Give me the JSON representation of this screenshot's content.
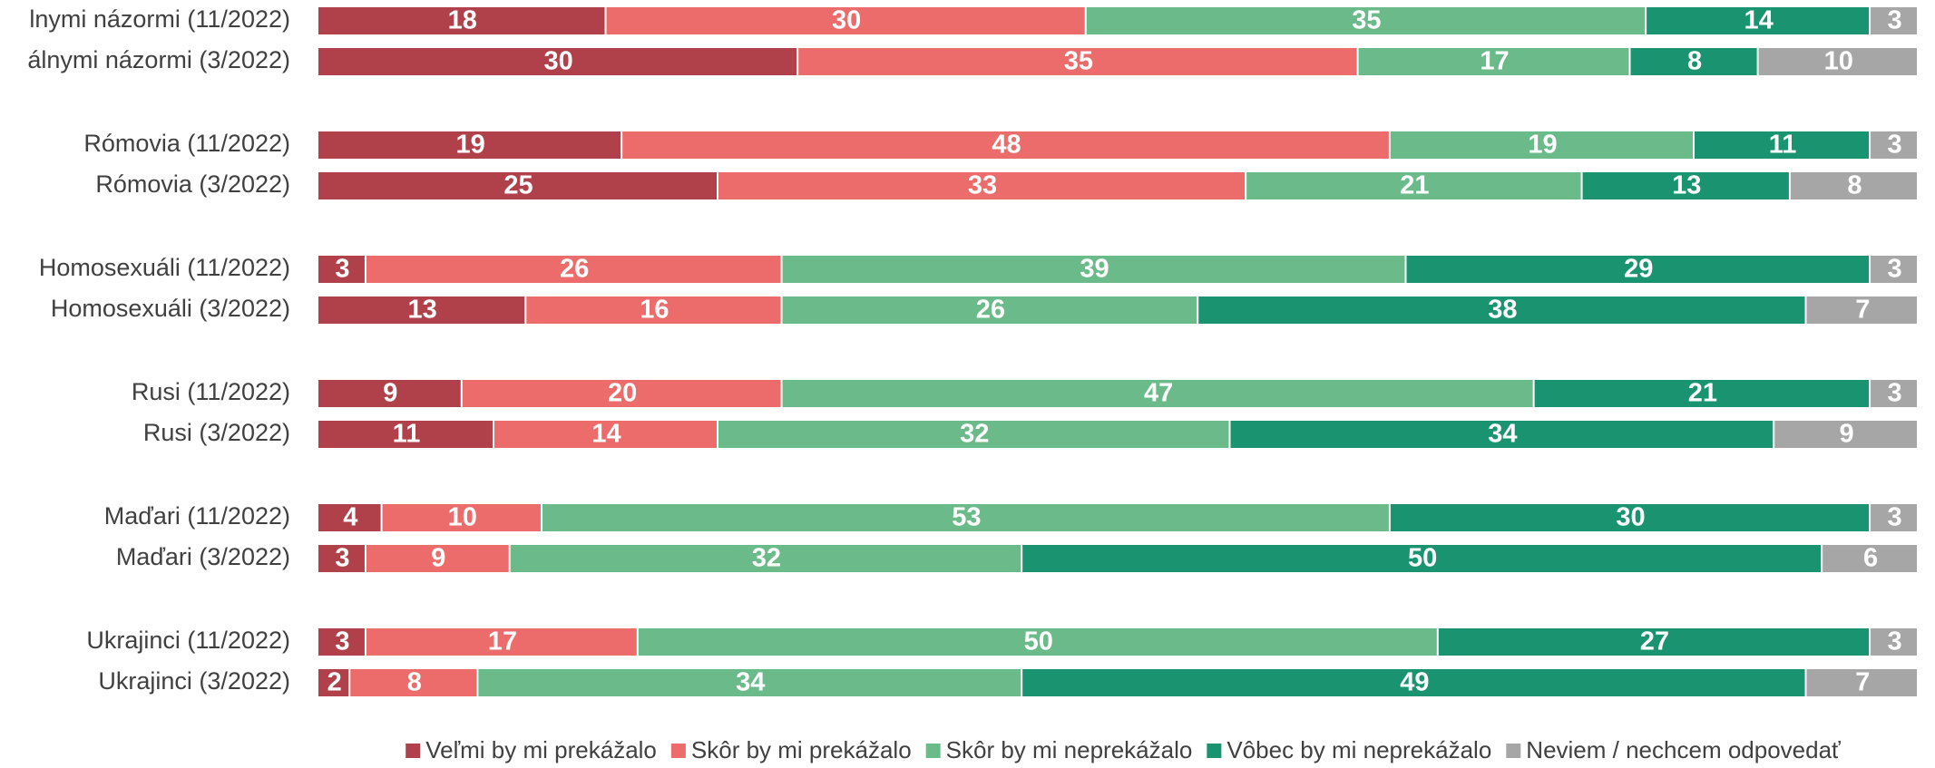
{
  "chart_data": {
    "type": "stacked-bar-horizontal",
    "categories": [
      "lnymi názormi (11/2022)",
      "álnymi názormi (3/2022)",
      "Rómovia (11/2022)",
      "Rómovia (3/2022)",
      "Homosexuáli (11/2022)",
      "Homosexuáli (3/2022)",
      "Rusi (11/2022)",
      "Rusi (3/2022)",
      "Maďari (11/2022)",
      "Maďari (3/2022)",
      "Ukrajinci (11/2022)",
      "Ukrajinci (3/2022)"
    ],
    "xlim": [
      0,
      100
    ],
    "legend": "bottom",
    "series": [
      {
        "name": "Veľmi by mi prekážalo",
        "color": "#b0414a",
        "values": [
          18,
          30,
          19,
          25,
          3,
          13,
          9,
          11,
          4,
          3,
          3,
          2
        ]
      },
      {
        "name": "Skôr by mi prekážalo",
        "color": "#ec6b6b",
        "values": [
          30,
          35,
          48,
          33,
          26,
          16,
          20,
          14,
          10,
          9,
          17,
          8
        ]
      },
      {
        "name": "Skôr by mi neprekážalo",
        "color": "#6bbb8a",
        "values": [
          35,
          17,
          19,
          21,
          39,
          26,
          47,
          32,
          53,
          32,
          50,
          34
        ]
      },
      {
        "name": "Vôbec by mi neprekážalo",
        "color": "#1a9470",
        "values": [
          14,
          8,
          11,
          13,
          29,
          38,
          21,
          34,
          30,
          50,
          27,
          49
        ]
      },
      {
        "name": "Neviem / nechcem odpovedať",
        "color": "#a6a6a6",
        "values": [
          3,
          10,
          3,
          8,
          3,
          7,
          3,
          9,
          3,
          6,
          3,
          7
        ]
      }
    ]
  }
}
